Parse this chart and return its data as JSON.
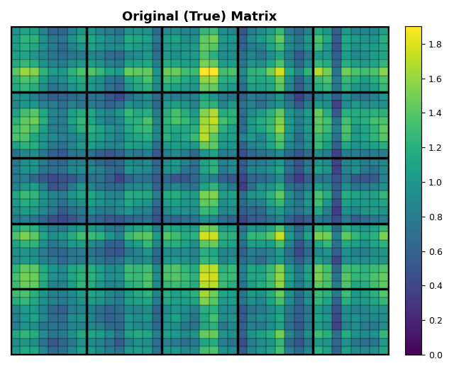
{
  "title": "Original (True) Matrix",
  "colormap": "viridis",
  "vmin": 0,
  "vmax": 1.9,
  "colorbar_ticks": [
    0.0,
    0.2,
    0.4,
    0.6,
    0.8,
    1.0,
    1.2,
    1.4,
    1.6,
    1.8
  ],
  "n_rows": 40,
  "n_cols": 40,
  "rank": 5,
  "random_seed": 7,
  "block_lines_every": 8,
  "grid_color": "black",
  "grid_linewidth": 0.3,
  "block_linewidth": 2.5,
  "title_fontsize": 13,
  "title_fontweight": "bold",
  "figsize": [
    6.4,
    5.24
  ],
  "dpi": 100
}
